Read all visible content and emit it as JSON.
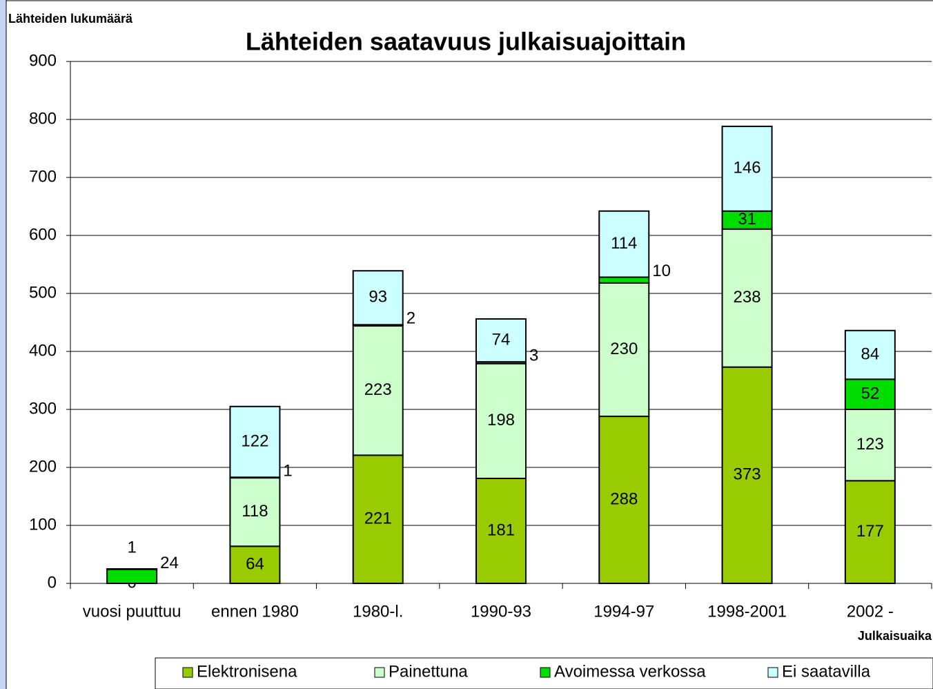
{
  "chart_data": {
    "type": "stacked_bar",
    "title": "Lähteiden saatavuus julkaisuajoittain",
    "y_label": "Lähteiden lukumäärä",
    "x_label": "Julkaisuaika",
    "categories": [
      "vuosi puuttuu",
      "ennen 1980",
      "1980-l.",
      "1990-93",
      "1994-97",
      "1998-2001",
      "2002 -"
    ],
    "series": [
      {
        "name": "Elektronisena",
        "color": "#99cc00",
        "values": [
          0,
          64,
          221,
          181,
          288,
          373,
          177
        ]
      },
      {
        "name": "Painettuna",
        "color": "#ccffcc",
        "values": [
          null,
          118,
          223,
          198,
          230,
          238,
          123
        ]
      },
      {
        "name": "Avoimessa verkossa",
        "color": "#00dd00",
        "values": [
          24,
          1,
          2,
          3,
          10,
          31,
          52
        ]
      },
      {
        "name": "Ei saatavilla",
        "color": "#ccffff",
        "values": [
          1,
          122,
          93,
          74,
          114,
          146,
          84
        ]
      }
    ],
    "ylim": [
      0,
      900
    ],
    "yticks": [
      0,
      100,
      200,
      300,
      400,
      500,
      600,
      700,
      800,
      900
    ],
    "grid": true,
    "legend": "bottom"
  }
}
